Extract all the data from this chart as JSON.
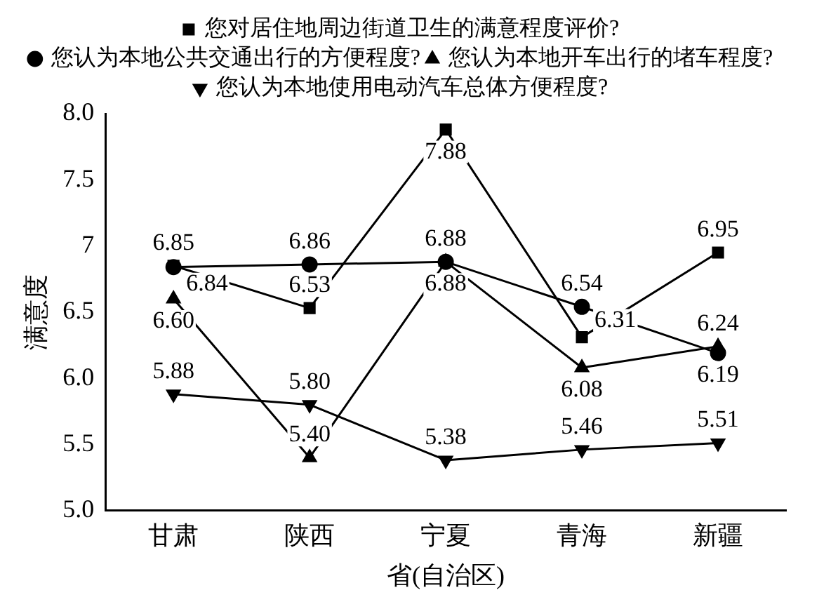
{
  "chart_data": {
    "type": "line",
    "xlabel": "省(自治区)",
    "ylabel": "满意度",
    "categories": [
      "甘肃",
      "陕西",
      "宁夏",
      "青海",
      "新疆"
    ],
    "series": [
      {
        "name": "您对居住地周边街道卫生的满意程度评价?",
        "color": "#000000",
        "marker": "square",
        "values": [
          6.85,
          6.53,
          7.88,
          6.31,
          6.95
        ],
        "value_labels": [
          "6.85",
          "6.53",
          "7.88",
          "6.31",
          "6.95"
        ]
      },
      {
        "name": "您认为本地公共交通出行的方便程度?",
        "color": "#000000",
        "marker": "circle",
        "values": [
          6.84,
          6.86,
          6.88,
          6.54,
          6.19
        ],
        "value_labels": [
          "6.84",
          "6.86",
          "6.88",
          "6.54",
          "6.19"
        ]
      },
      {
        "name": "您认为本地开车出行的堵车程度?",
        "color": "#000000",
        "marker": "triangle",
        "values": [
          6.6,
          5.4,
          6.88,
          6.08,
          6.24
        ],
        "value_labels": [
          "6.60",
          "5.40",
          "6.88",
          "6.08",
          "6.24"
        ]
      },
      {
        "name": "您认为本地使用电动汽车总体方便程度?",
        "color": "#000000",
        "marker": "triangle-down",
        "values": [
          5.88,
          5.8,
          5.38,
          5.46,
          5.51
        ],
        "value_labels": [
          "5.88",
          "5.80",
          "5.38",
          "5.46",
          "5.51"
        ]
      }
    ],
    "ylim": [
      5.0,
      8.0
    ],
    "yticks": [
      {
        "value": 5,
        "label": "5.0"
      },
      {
        "value": 5.5,
        "label": "5.5"
      },
      {
        "value": 6,
        "label": "6.0"
      },
      {
        "value": 6.5,
        "label": "6.5"
      },
      {
        "value": 7,
        "label": "7"
      },
      {
        "value": 7.5,
        "label": "7.5"
      },
      {
        "value": 8,
        "label": "8.0"
      }
    ],
    "grid": false,
    "legend": "top",
    "line_style": "solid"
  }
}
